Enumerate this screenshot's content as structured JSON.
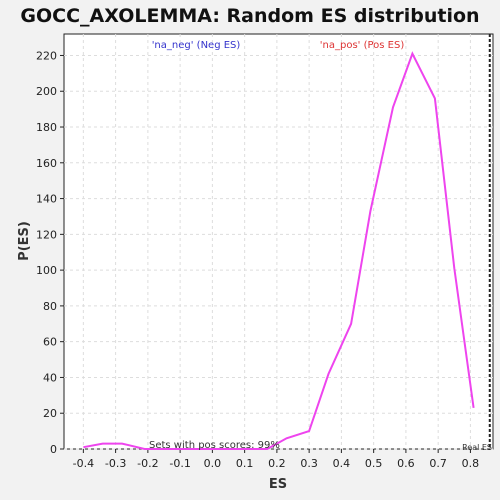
{
  "chart_data": {
    "type": "line",
    "title": "GOCC_AXOLEMMA: Random ES distribution",
    "xlabel": "ES",
    "ylabel": "P(ES)",
    "xlim": [
      -0.46,
      0.87
    ],
    "ylim": [
      0,
      232
    ],
    "x_ticks": [
      -0.4,
      -0.3,
      -0.2,
      -0.1,
      0.0,
      0.1,
      0.2,
      0.3,
      0.4,
      0.5,
      0.6,
      0.7,
      0.8
    ],
    "x_tick_labels": [
      "-0.4",
      "-0.3",
      "-0.2",
      "-0.1",
      "0.0",
      "0.1",
      "0.2",
      "0.3",
      "0.4",
      "0.5",
      "0.6",
      "0.7",
      "0.8"
    ],
    "y_ticks": [
      0,
      20,
      40,
      60,
      80,
      100,
      120,
      140,
      160,
      180,
      200,
      220
    ],
    "y_tick_labels": [
      "0",
      "20",
      "40",
      "60",
      "80",
      "100",
      "120",
      "140",
      "160",
      "180",
      "200",
      "220"
    ],
    "grid": true,
    "series": [
      {
        "color": "#ee44ee",
        "x": [
          -0.4,
          -0.34,
          -0.28,
          -0.21,
          -0.15,
          -0.09,
          -0.02,
          0.04,
          0.1,
          0.17,
          0.23,
          0.3,
          0.36,
          0.43,
          0.49,
          0.56,
          0.62,
          0.69,
          0.75,
          0.81
        ],
        "y": [
          1,
          3,
          3,
          0,
          0,
          0,
          0,
          0,
          0,
          0,
          6,
          10,
          42,
          70,
          133,
          191,
          221,
          196,
          101,
          23
        ]
      }
    ],
    "real_es": 0.86,
    "real_es_color": "#222222",
    "annotations": {
      "neg": "'na_neg' (Neg ES)",
      "pos": "'na_pos' (Pos ES)",
      "sets": "Sets with pos scores: 99%",
      "real": "Real ES"
    }
  }
}
